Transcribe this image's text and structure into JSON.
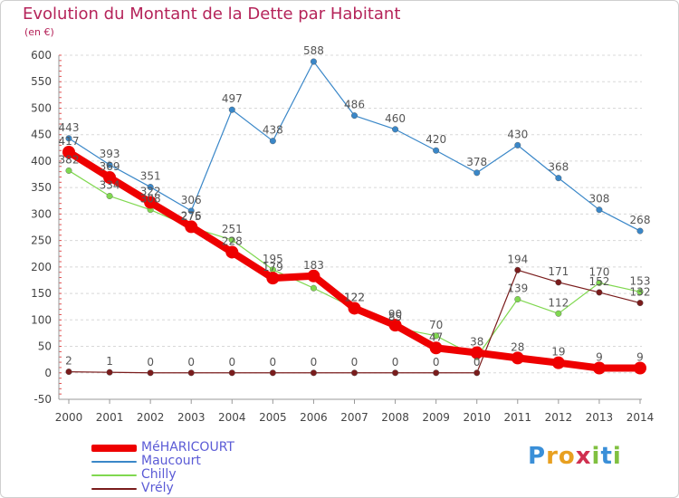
{
  "chart_data": {
    "type": "line",
    "title": "Evolution du Montant de la Dette par Habitant",
    "unit_label": "(en €)",
    "x": [
      "2000",
      "2001",
      "2002",
      "2003",
      "2004",
      "2005",
      "2006",
      "2007",
      "2008",
      "2009",
      "2010",
      "2011",
      "2012",
      "2013",
      "2014"
    ],
    "ylim": [
      -50,
      600
    ],
    "yticks": [
      -50,
      0,
      50,
      100,
      150,
      200,
      250,
      300,
      350,
      400,
      450,
      500,
      550,
      600
    ],
    "grid": "dashed-horizontal",
    "legend_position": "bottom-left",
    "series": [
      {
        "name": "MéHARICOURT",
        "color": "#ee0000",
        "values": [
          417,
          369,
          322,
          276,
          228,
          179,
          183,
          122,
          90,
          47,
          38,
          28,
          19,
          9,
          9
        ]
      },
      {
        "name": "Maucourt",
        "color": "#3a87c8",
        "values": [
          443,
          393,
          351,
          306,
          497,
          438,
          588,
          486,
          460,
          420,
          378,
          430,
          368,
          308,
          268
        ]
      },
      {
        "name": "Chilly",
        "color": "#80d850",
        "values": [
          382,
          334,
          308,
          275,
          251,
          195,
          160,
          122,
          85,
          70,
          30,
          139,
          112,
          170,
          153
        ]
      },
      {
        "name": "Vrély",
        "color": "#7a1c1c",
        "values": [
          2,
          1,
          0,
          0,
          0,
          0,
          0,
          0,
          0,
          0,
          0,
          194,
          171,
          152,
          132
        ]
      }
    ],
    "value_labels": [
      {
        "series": 0,
        "indices": [
          0,
          1,
          2,
          3,
          4,
          5,
          6,
          7,
          8,
          9,
          10,
          11,
          12,
          13,
          14
        ]
      },
      {
        "series": 1,
        "indices": [
          0,
          1,
          2,
          3,
          4,
          5,
          6,
          7,
          8,
          9,
          10,
          11,
          12,
          13,
          14
        ]
      },
      {
        "series": 2,
        "indices": [
          0,
          1,
          2,
          3,
          4,
          5,
          7,
          8,
          9,
          11,
          12,
          13,
          14
        ]
      },
      {
        "series": 3,
        "indices": [
          0,
          1,
          2,
          3,
          4,
          5,
          6,
          7,
          8,
          9,
          10,
          11,
          12,
          13,
          14
        ]
      }
    ]
  },
  "brand": {
    "letters": [
      "P",
      "r",
      "o",
      "x",
      "i",
      "t",
      "i"
    ],
    "colors": [
      "#3a8fd8",
      "#e8a020",
      "#e8a020",
      "#d03050",
      "#80c040",
      "#3a8fd8",
      "#80c040"
    ]
  }
}
